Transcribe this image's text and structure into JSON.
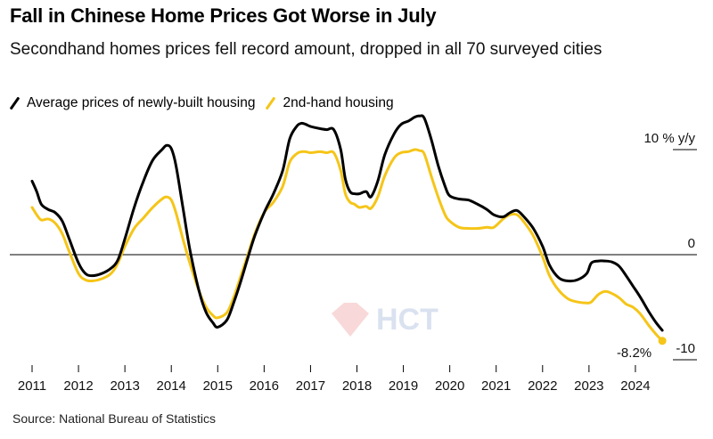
{
  "title": "Fall in Chinese Home Prices Got Worse in July",
  "subtitle": "Secondhand homes prices fell record amount, dropped in all 70 surveyed cities",
  "source": "Source: National Bureau of Statistics",
  "chart_data": {
    "type": "line",
    "title": "Fall in Chinese Home Prices Got Worse in July",
    "subtitle": "Secondhand homes prices fell record amount, dropped in all 70 surveyed cities",
    "ylabel": "% y/y",
    "ylim": [
      -12,
      14
    ],
    "xlim": [
      2011,
      2025
    ],
    "y_ticks": [
      10,
      0,
      -10
    ],
    "y_tick_labels": [
      "10 % y/y",
      "0",
      "-10"
    ],
    "x_ticks": [
      "2011",
      "2012",
      "2013",
      "2014",
      "2015",
      "2016",
      "2017",
      "2018",
      "2019",
      "2020",
      "2021",
      "2022",
      "2023",
      "2024"
    ],
    "grid": false,
    "legend": "top-left",
    "annotation": {
      "text": "-8.2%",
      "x": 2024.58,
      "y": -8.2,
      "series": "2nd-hand housing"
    },
    "watermark": "HCT",
    "series": [
      {
        "name": "Average prices of newly-built housing",
        "color": "#000000",
        "x": [
          2011.0,
          2011.1,
          2011.2,
          2011.35,
          2011.5,
          2011.65,
          2011.8,
          2012.0,
          2012.15,
          2012.3,
          2012.5,
          2012.7,
          2012.85,
          2013.0,
          2013.2,
          2013.4,
          2013.6,
          2013.8,
          2013.9,
          2014.0,
          2014.1,
          2014.25,
          2014.4,
          2014.6,
          2014.75,
          2014.9,
          2015.0,
          2015.2,
          2015.35,
          2015.5,
          2015.65,
          2015.8,
          2016.0,
          2016.2,
          2016.4,
          2016.55,
          2016.7,
          2016.8,
          2016.9,
          2017.0,
          2017.2,
          2017.35,
          2017.5,
          2017.65,
          2017.75,
          2017.85,
          2017.95,
          2018.05,
          2018.2,
          2018.3,
          2018.45,
          2018.6,
          2018.8,
          2018.95,
          2019.1,
          2019.25,
          2019.35,
          2019.45,
          2019.6,
          2019.75,
          2019.9,
          2020.0,
          2020.2,
          2020.4,
          2020.6,
          2020.8,
          2020.95,
          2021.15,
          2021.3,
          2021.45,
          2021.6,
          2021.8,
          2022.0,
          2022.15,
          2022.35,
          2022.55,
          2022.75,
          2022.95,
          2023.05,
          2023.2,
          2023.35,
          2023.5,
          2023.65,
          2023.8,
          2023.95,
          2024.1,
          2024.3,
          2024.45,
          2024.58
        ],
        "values": [
          7.0,
          6.0,
          4.8,
          4.3,
          4.0,
          3.2,
          1.5,
          -0.8,
          -1.8,
          -2.0,
          -1.8,
          -1.3,
          -0.5,
          1.5,
          4.5,
          7.0,
          9.0,
          10.0,
          10.4,
          10.1,
          8.5,
          4.5,
          0.5,
          -3.5,
          -5.5,
          -6.5,
          -6.9,
          -6.2,
          -4.5,
          -2.5,
          -0.3,
          1.8,
          4.0,
          5.8,
          8.0,
          11.0,
          12.2,
          12.5,
          12.4,
          12.2,
          12.0,
          11.9,
          11.9,
          10.0,
          7.2,
          6.0,
          5.8,
          5.8,
          6.0,
          5.5,
          7.0,
          9.5,
          11.5,
          12.4,
          12.7,
          13.1,
          13.2,
          13.0,
          11.0,
          8.5,
          6.5,
          5.6,
          5.3,
          5.2,
          4.8,
          4.3,
          3.8,
          3.6,
          4.0,
          4.2,
          3.6,
          2.5,
          0.8,
          -1.0,
          -2.2,
          -2.5,
          -2.4,
          -1.8,
          -0.8,
          -0.6,
          -0.6,
          -0.7,
          -1.1,
          -2.0,
          -3.0,
          -4.0,
          -5.5,
          -6.5,
          -7.2
        ]
      },
      {
        "name": "2nd-hand housing",
        "color": "#F5C518",
        "x": [
          2011.0,
          2011.1,
          2011.2,
          2011.35,
          2011.5,
          2011.65,
          2011.8,
          2012.0,
          2012.15,
          2012.3,
          2012.5,
          2012.7,
          2012.85,
          2013.0,
          2013.2,
          2013.4,
          2013.6,
          2013.8,
          2013.9,
          2014.0,
          2014.1,
          2014.25,
          2014.4,
          2014.6,
          2014.75,
          2014.9,
          2015.0,
          2015.2,
          2015.35,
          2015.5,
          2015.65,
          2015.8,
          2016.0,
          2016.2,
          2016.4,
          2016.55,
          2016.7,
          2016.8,
          2016.9,
          2017.0,
          2017.2,
          2017.35,
          2017.5,
          2017.65,
          2017.75,
          2017.85,
          2017.95,
          2018.05,
          2018.2,
          2018.3,
          2018.45,
          2018.6,
          2018.8,
          2018.95,
          2019.1,
          2019.25,
          2019.35,
          2019.45,
          2019.6,
          2019.75,
          2019.9,
          2020.0,
          2020.2,
          2020.4,
          2020.6,
          2020.8,
          2020.95,
          2021.15,
          2021.3,
          2021.45,
          2021.6,
          2021.8,
          2022.0,
          2022.15,
          2022.35,
          2022.55,
          2022.75,
          2022.95,
          2023.05,
          2023.2,
          2023.35,
          2023.5,
          2023.65,
          2023.8,
          2023.95,
          2024.1,
          2024.3,
          2024.45,
          2024.58
        ],
        "values": [
          4.5,
          3.8,
          3.3,
          3.4,
          3.0,
          2.0,
          0.3,
          -1.8,
          -2.4,
          -2.5,
          -2.3,
          -1.8,
          -0.8,
          0.8,
          2.5,
          3.5,
          4.5,
          5.3,
          5.5,
          5.2,
          4.0,
          1.5,
          -0.8,
          -3.5,
          -5.0,
          -5.8,
          -6.0,
          -5.5,
          -4.0,
          -2.0,
          0.0,
          2.0,
          4.0,
          5.0,
          6.5,
          8.8,
          9.6,
          9.8,
          9.8,
          9.7,
          9.8,
          9.7,
          9.7,
          8.0,
          5.8,
          5.0,
          4.8,
          4.5,
          4.6,
          4.4,
          5.5,
          7.5,
          9.2,
          9.7,
          9.8,
          10.0,
          9.9,
          9.6,
          7.5,
          5.5,
          3.8,
          3.2,
          2.6,
          2.5,
          2.5,
          2.6,
          2.6,
          3.4,
          3.8,
          3.8,
          3.1,
          1.8,
          -0.2,
          -2.0,
          -3.4,
          -4.2,
          -4.5,
          -4.6,
          -4.5,
          -3.8,
          -3.5,
          -3.7,
          -4.1,
          -4.7,
          -5.0,
          -5.6,
          -6.8,
          -7.6,
          -8.2
        ]
      }
    ]
  }
}
